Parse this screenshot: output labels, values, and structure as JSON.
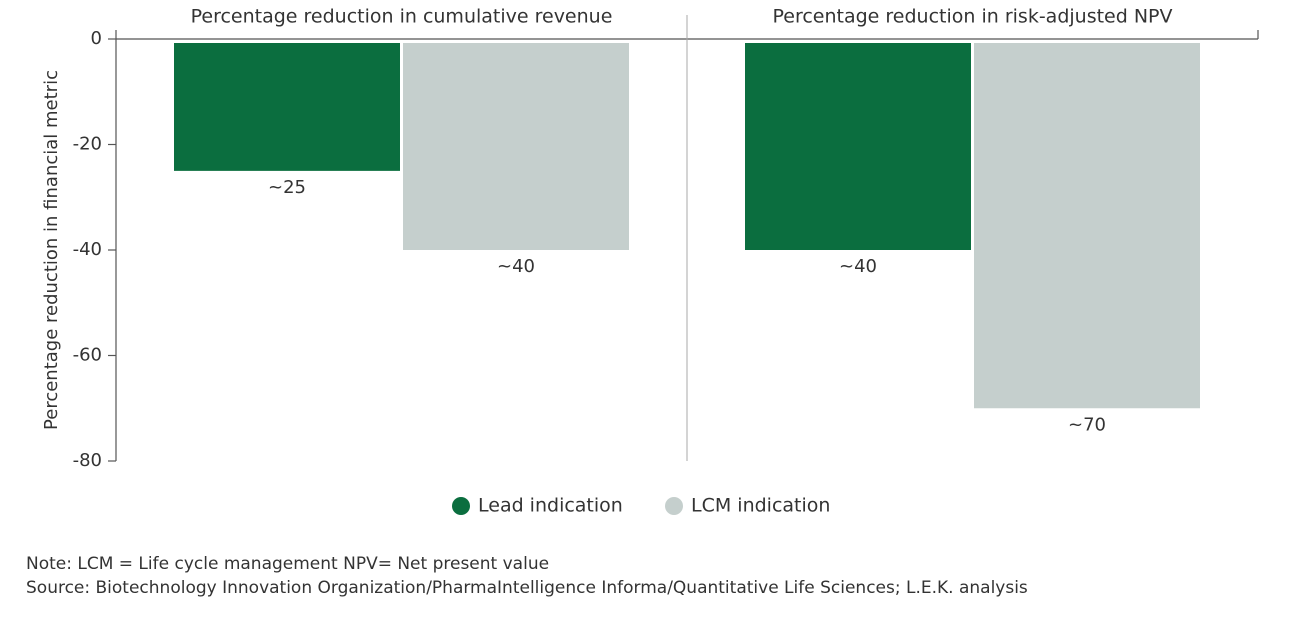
{
  "chart_data": {
    "type": "bar",
    "categories": [
      "Percentage reduction in cumulative revenue",
      "Percentage reduction in risk-adjusted NPV"
    ],
    "series": [
      {
        "name": "Lead indication",
        "color": "#0b6e3f",
        "values": [
          -25,
          -40
        ],
        "value_labels": [
          "~25",
          "~40"
        ]
      },
      {
        "name": "LCM indication",
        "color": "#c5cfcd",
        "values": [
          -40,
          -70
        ],
        "value_labels": [
          "~40",
          "~70"
        ]
      }
    ],
    "ylabel": "Percentage reduction in financial metric",
    "ylim": [
      -80,
      0
    ],
    "yticks": [
      0,
      -20,
      -40,
      -60,
      -80
    ],
    "legend": "bottom",
    "note": "Note: LCM = Life cycle management NPV= Net present value",
    "source": "Source: Biotechnology Innovation Organization/PharmaIntelligence Informa/Quantitative Life Sciences; L.E.K. analysis"
  }
}
